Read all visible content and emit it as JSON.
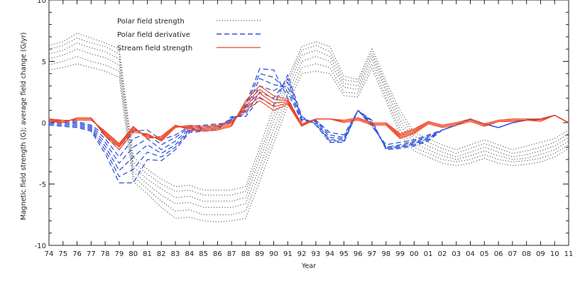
{
  "chart_data": {
    "type": "line",
    "title": "",
    "xlabel": "Year",
    "ylabel": "Magnetic field strength (G); average field change (G/yr)",
    "xlim": [
      1974,
      2011
    ],
    "ylim": [
      -10,
      10
    ],
    "x_tick_labels": [
      "74",
      "75",
      "76",
      "77",
      "78",
      "79",
      "80",
      "81",
      "82",
      "83",
      "84",
      "85",
      "86",
      "87",
      "88",
      "89",
      "90",
      "91",
      "92",
      "93",
      "94",
      "95",
      "96",
      "97",
      "98",
      "99",
      "00",
      "01",
      "02",
      "03",
      "04",
      "05",
      "06",
      "07",
      "08",
      "09",
      "10",
      "11"
    ],
    "y_ticks": [
      -10,
      -5,
      0,
      5,
      10
    ],
    "legend_position": "top-left",
    "x": [
      1974,
      1975,
      1976,
      1977,
      1978,
      1979,
      1980,
      1981,
      1982,
      1983,
      1984,
      1985,
      1986,
      1987,
      1988,
      1989,
      1990,
      1991,
      1992,
      1993,
      1994,
      1995,
      1996,
      1997,
      1998,
      1999,
      2000,
      2001,
      2002,
      2003,
      2004,
      2005,
      2006,
      2007,
      2008,
      2009,
      2010,
      2011
    ],
    "series": [
      {
        "name": "Polar field strength",
        "style": "dotted",
        "color": "#555555",
        "lines": [
          [
            6.3,
            6.6,
            7.3,
            6.9,
            6.5,
            6.0,
            -2.8,
            -3.8,
            -4.6,
            -5.2,
            -5.1,
            -5.5,
            -5.5,
            -5.5,
            -5.2,
            -2.0,
            1.2,
            3.6,
            6.2,
            6.6,
            6.2,
            3.8,
            3.5,
            6.1,
            3.4,
            1.0,
            -0.8,
            -1.3,
            -1.8,
            -2.2,
            -1.8,
            -1.4,
            -1.8,
            -2.2,
            -1.9,
            -1.6,
            -1.3,
            -0.6
          ],
          [
            6.0,
            6.3,
            6.9,
            6.5,
            6.2,
            5.6,
            -3.2,
            -4.2,
            -5.0,
            -5.6,
            -5.5,
            -5.9,
            -5.9,
            -5.9,
            -5.6,
            -2.5,
            0.6,
            3.3,
            5.9,
            6.3,
            5.8,
            3.5,
            3.3,
            5.8,
            3.1,
            0.6,
            -1.1,
            -1.6,
            -2.1,
            -2.5,
            -2.1,
            -1.7,
            -2.1,
            -2.5,
            -2.3,
            -2.0,
            -1.6,
            -0.9
          ],
          [
            5.6,
            5.9,
            6.5,
            6.1,
            5.8,
            5.2,
            -3.6,
            -4.6,
            -5.4,
            -6.1,
            -6.0,
            -6.4,
            -6.4,
            -6.4,
            -6.1,
            -3.0,
            0.1,
            2.9,
            5.5,
            5.9,
            5.4,
            3.2,
            3.0,
            5.5,
            2.8,
            0.2,
            -1.4,
            -1.9,
            -2.4,
            -2.8,
            -2.4,
            -2.0,
            -2.4,
            -2.8,
            -2.6,
            -2.3,
            -1.9,
            -1.2
          ],
          [
            5.2,
            5.5,
            6.0,
            5.6,
            5.3,
            4.7,
            -4.0,
            -5.0,
            -5.9,
            -6.6,
            -6.5,
            -6.9,
            -6.9,
            -6.9,
            -6.6,
            -3.6,
            -0.5,
            2.4,
            5.0,
            5.4,
            5.0,
            2.9,
            2.7,
            5.2,
            2.5,
            -0.2,
            -1.7,
            -2.2,
            -2.7,
            -3.0,
            -2.7,
            -2.3,
            -2.7,
            -3.0,
            -2.9,
            -2.6,
            -2.2,
            -1.5
          ],
          [
            4.7,
            5.0,
            5.4,
            5.0,
            4.7,
            4.2,
            -4.4,
            -5.4,
            -6.4,
            -7.2,
            -7.1,
            -7.5,
            -7.5,
            -7.5,
            -7.2,
            -4.2,
            -1.1,
            1.9,
            4.5,
            4.8,
            4.5,
            2.5,
            2.4,
            4.8,
            2.1,
            -0.6,
            -2.0,
            -2.5,
            -3.0,
            -3.2,
            -3.0,
            -2.6,
            -3.0,
            -3.2,
            -3.1,
            -2.9,
            -2.5,
            -1.8
          ],
          [
            4.3,
            4.5,
            4.8,
            4.5,
            4.2,
            3.7,
            -4.8,
            -5.8,
            -6.9,
            -7.8,
            -7.7,
            -8.0,
            -8.1,
            -8.0,
            -7.8,
            -4.8,
            -1.7,
            1.4,
            4.0,
            4.2,
            4.0,
            2.2,
            2.1,
            4.4,
            1.8,
            -1.0,
            -2.3,
            -2.8,
            -3.3,
            -3.5,
            -3.3,
            -2.9,
            -3.3,
            -3.5,
            -3.4,
            -3.2,
            -2.8,
            -2.1
          ]
        ]
      },
      {
        "name": "Polar field derivative",
        "style": "dashed",
        "color": "#3355dd",
        "lines": [
          [
            0.3,
            0.2,
            0.1,
            -0.2,
            -1.0,
            -2.2,
            -0.7,
            -0.6,
            -1.4,
            -1.0,
            -0.3,
            -0.2,
            -0.1,
            0.0,
            1.5,
            4.4,
            4.3,
            2.0,
            -0.2,
            0.2,
            -0.8,
            -1.0,
            1.0,
            -0.3,
            -1.8,
            -1.6,
            -1.4,
            -1.0,
            -0.6,
            -0.2,
            0.3,
            -0.1,
            -0.4,
            0.0,
            0.2,
            0.3,
            0.6,
            0.0
          ],
          [
            0.2,
            0.1,
            0.0,
            -0.3,
            -1.3,
            -2.8,
            -1.3,
            -0.9,
            -1.8,
            -1.2,
            -0.4,
            -0.3,
            -0.2,
            0.1,
            1.3,
            4.0,
            3.7,
            2.5,
            0.1,
            0.2,
            -1.0,
            -1.2,
            1.0,
            -0.2,
            -2.0,
            -1.8,
            -1.5,
            -1.1,
            -0.6,
            -0.2,
            0.3,
            -0.1,
            -0.4,
            0.0,
            0.2,
            0.3,
            0.6,
            0.0
          ],
          [
            0.1,
            0.0,
            -0.1,
            -0.4,
            -1.6,
            -3.3,
            -2.0,
            -1.3,
            -2.2,
            -1.5,
            -0.5,
            -0.4,
            -0.3,
            0.2,
            1.1,
            3.6,
            3.1,
            2.9,
            0.2,
            0.1,
            -1.2,
            -1.3,
            1.0,
            -0.1,
            -2.0,
            -1.9,
            -1.6,
            -1.2,
            -0.6,
            -0.2,
            0.3,
            -0.1,
            -0.4,
            0.0,
            0.2,
            0.3,
            0.6,
            0.0
          ],
          [
            0.0,
            -0.1,
            -0.2,
            -0.5,
            -1.9,
            -3.9,
            -2.8,
            -1.8,
            -2.5,
            -1.8,
            -0.6,
            -0.5,
            -0.4,
            0.3,
            0.9,
            3.0,
            2.6,
            3.3,
            0.3,
            0.0,
            -1.4,
            -1.4,
            1.0,
            0.0,
            -2.1,
            -2.0,
            -1.7,
            -1.3,
            -0.6,
            -0.2,
            0.3,
            -0.1,
            -0.4,
            0.0,
            0.2,
            0.3,
            0.6,
            0.0
          ],
          [
            -0.1,
            -0.2,
            -0.3,
            -0.6,
            -2.2,
            -4.4,
            -3.8,
            -2.4,
            -2.8,
            -2.0,
            -0.7,
            -0.6,
            -0.5,
            0.4,
            0.7,
            2.5,
            2.0,
            3.6,
            0.4,
            -0.1,
            -1.5,
            -1.5,
            1.0,
            0.1,
            -2.1,
            -2.0,
            -1.8,
            -1.4,
            -0.6,
            -0.2,
            0.3,
            -0.1,
            -0.4,
            0.0,
            0.2,
            0.3,
            0.6,
            0.0
          ],
          [
            -0.2,
            -0.3,
            -0.4,
            -0.7,
            -2.5,
            -4.9,
            -4.9,
            -3.0,
            -3.1,
            -2.2,
            -0.8,
            -0.7,
            -0.6,
            0.5,
            0.5,
            2.0,
            1.4,
            3.9,
            0.5,
            -0.2,
            -1.6,
            -1.6,
            1.0,
            0.2,
            -2.2,
            -2.1,
            -1.9,
            -1.5,
            -0.6,
            -0.2,
            0.3,
            -0.1,
            -0.4,
            0.0,
            0.2,
            0.3,
            0.6,
            0.0
          ]
        ]
      },
      {
        "name": "Stream field strength",
        "style": "solid",
        "color": "#ee4422",
        "lines": [
          [
            0.1,
            0.0,
            0.4,
            0.4,
            -1.1,
            -2.2,
            -0.8,
            -0.9,
            -1.5,
            -0.4,
            -0.2,
            -0.3,
            -0.2,
            0.1,
            1.0,
            1.8,
            1.0,
            1.5,
            -0.3,
            0.3,
            0.3,
            0.0,
            0.2,
            -0.2,
            -0.2,
            -1.3,
            -0.9,
            -0.1,
            -0.4,
            -0.2,
            0.1,
            -0.3,
            0.1,
            0.1,
            0.2,
            0.1,
            0.6,
            0.0
          ],
          [
            0.2,
            0.0,
            0.4,
            0.4,
            -1.0,
            -2.0,
            -0.6,
            -1.0,
            -1.4,
            -0.3,
            -0.3,
            -0.4,
            -0.3,
            0.0,
            1.2,
            2.1,
            1.3,
            1.6,
            -0.2,
            0.3,
            0.3,
            0.1,
            0.3,
            -0.1,
            -0.1,
            -1.2,
            -0.8,
            0.0,
            -0.3,
            -0.1,
            0.2,
            -0.2,
            0.1,
            0.2,
            0.2,
            0.2,
            0.6,
            0.0
          ],
          [
            0.2,
            0.1,
            0.3,
            0.3,
            -0.9,
            -1.9,
            -0.5,
            -1.1,
            -1.3,
            -0.3,
            -0.4,
            -0.5,
            -0.4,
            -0.1,
            1.4,
            2.4,
            1.6,
            1.7,
            -0.2,
            0.3,
            0.3,
            0.1,
            0.3,
            -0.1,
            -0.1,
            -1.1,
            -0.7,
            0.0,
            -0.3,
            -0.1,
            0.2,
            -0.2,
            0.1,
            0.2,
            0.2,
            0.2,
            0.6,
            0.0
          ],
          [
            0.3,
            0.1,
            0.3,
            0.3,
            -0.8,
            -1.8,
            -0.4,
            -1.2,
            -1.2,
            -0.2,
            -0.5,
            -0.6,
            -0.5,
            -0.2,
            1.6,
            2.7,
            1.9,
            1.8,
            -0.1,
            0.3,
            0.3,
            0.2,
            0.4,
            0.0,
            0.0,
            -1.0,
            -0.6,
            0.1,
            -0.2,
            0.0,
            0.3,
            -0.1,
            0.2,
            0.3,
            0.3,
            0.3,
            0.6,
            0.0
          ],
          [
            0.3,
            0.2,
            0.2,
            0.2,
            -0.7,
            -1.7,
            -0.3,
            -1.3,
            -1.1,
            -0.2,
            -0.6,
            -0.7,
            -0.6,
            -0.3,
            1.8,
            3.0,
            2.2,
            1.9,
            -0.1,
            0.3,
            0.3,
            0.2,
            0.4,
            0.0,
            0.0,
            -0.9,
            -0.5,
            0.1,
            -0.2,
            0.0,
            0.3,
            -0.1,
            0.2,
            0.3,
            0.3,
            0.3,
            0.6,
            0.0
          ]
        ]
      }
    ]
  }
}
